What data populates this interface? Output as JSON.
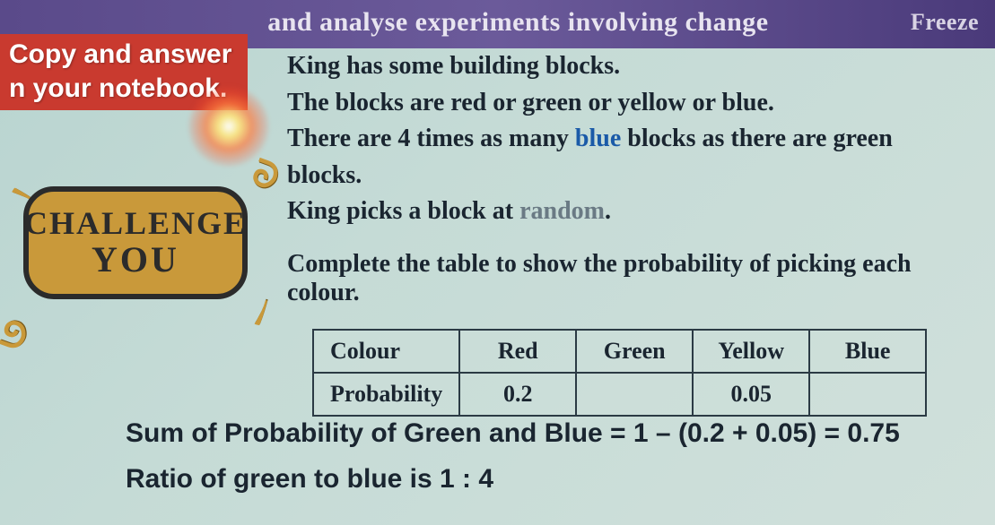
{
  "banner": {
    "text": "and analyse experiments involving change",
    "freeze": "Freeze"
  },
  "copy_box": {
    "line1": "Copy and answer",
    "line2": "n your notebook."
  },
  "challenge": {
    "line1": "CHALLENGE",
    "line2": "YOU"
  },
  "problem": {
    "line1": "King has some building blocks.",
    "line2a": "The blocks are red or green or yellow or blue.",
    "line3a": "There are 4 times as many ",
    "line3_blue": "blue",
    "line3b": " blocks as there are green blocks.",
    "line4a": "King picks a block at ",
    "line4_rand": "random",
    "line4b": "."
  },
  "instruction": "Complete the table to show the probability of picking each colour.",
  "table": {
    "header_label": "Colour",
    "row_label": "Probability",
    "columns": [
      "Red",
      "Green",
      "Yellow",
      "Blue"
    ],
    "values": [
      "0.2",
      "",
      "0.05",
      ""
    ],
    "border_color": "#2b3a44",
    "cell_fontsize": 26
  },
  "equations": {
    "line1": "Sum of Probability of Green and Blue = 1 – (0.2 + 0.05) = 0.75",
    "line2": "Ratio of green to blue is 1 : 4"
  },
  "colors": {
    "banner_bg": "#5a4a8a",
    "copy_bg": "#c93a2f",
    "badge_fill": "#c9993a",
    "badge_border": "#2b2b2b",
    "body_bg": "#c5dbd6",
    "text": "#1a2530",
    "blue_word": "#1a5aa8"
  }
}
